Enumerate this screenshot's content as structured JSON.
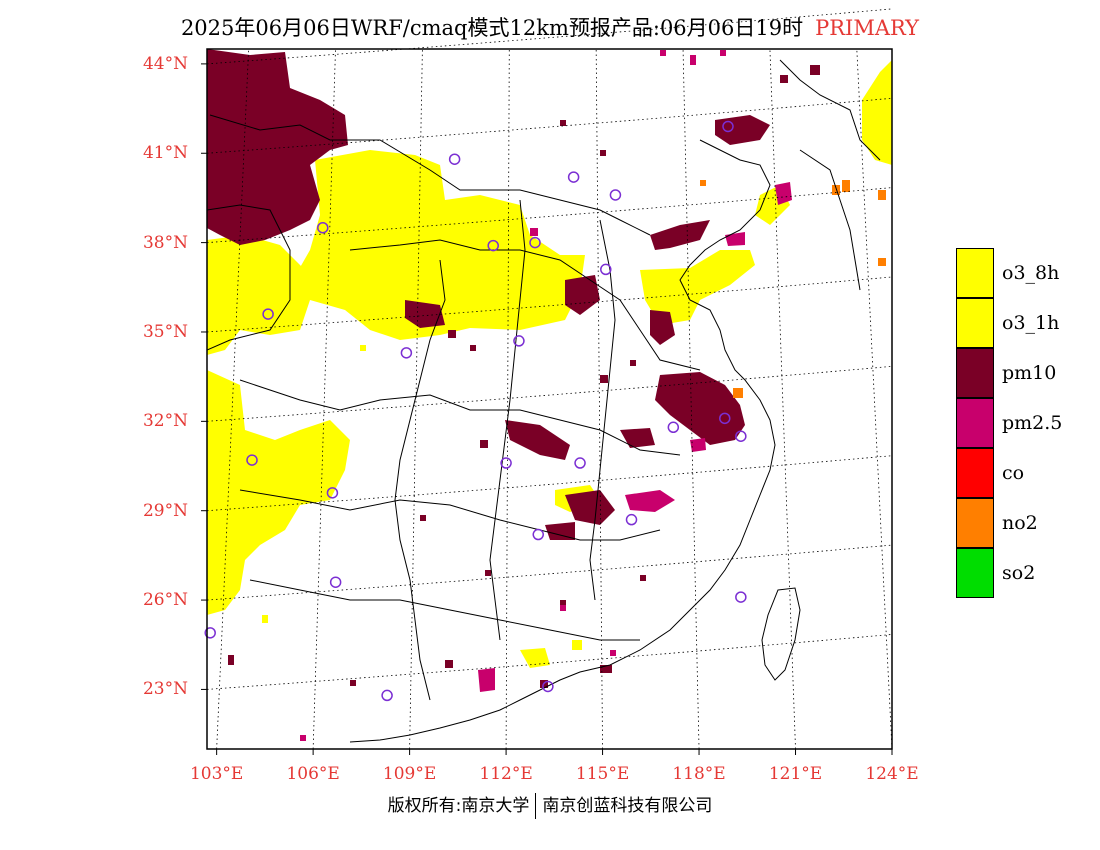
{
  "title": {
    "text": "2025年06月06日WRF/cmaq模式12km预报产品:06月06日19时",
    "tag": "PRIMARY"
  },
  "copyright": {
    "left": "版权所有:南京大学",
    "right": "南京创蓝科技有限公司"
  },
  "map_extent": {
    "lon_min": 102.7,
    "lon_max": 124.0,
    "lat_min": 21.0,
    "lat_max": 44.5
  },
  "latitude_labels": [
    "44°N",
    "41°N",
    "38°N",
    "35°N",
    "32°N",
    "29°N",
    "26°N",
    "23°N"
  ],
  "latitude_values": [
    44,
    41,
    38,
    35,
    32,
    29,
    26,
    23
  ],
  "longitude_labels": [
    "103°E",
    "106°E",
    "109°E",
    "112°E",
    "115°E",
    "118°E",
    "121°E",
    "124°E"
  ],
  "longitude_values": [
    103,
    106,
    109,
    112,
    115,
    118,
    121,
    124
  ],
  "legend": [
    {
      "label": "o3_8h",
      "color": "#ffff00"
    },
    {
      "label": "o3_1h",
      "color": "#ffff00"
    },
    {
      "label": "pm10",
      "color": "#7a0026"
    },
    {
      "label": "pm2.5",
      "color": "#c8006c"
    },
    {
      "label": "co",
      "color": "#ff0000"
    },
    {
      "label": "no2",
      "color": "#ff7f00"
    },
    {
      "label": "so2",
      "color": "#00dd00"
    }
  ],
  "colors": {
    "o3": "#ffff00",
    "pm10": "#7a0026",
    "pm25": "#c8006c",
    "no2": "#ff7f00",
    "station": "#7b2fd3",
    "axis_label": "#e53935"
  }
}
